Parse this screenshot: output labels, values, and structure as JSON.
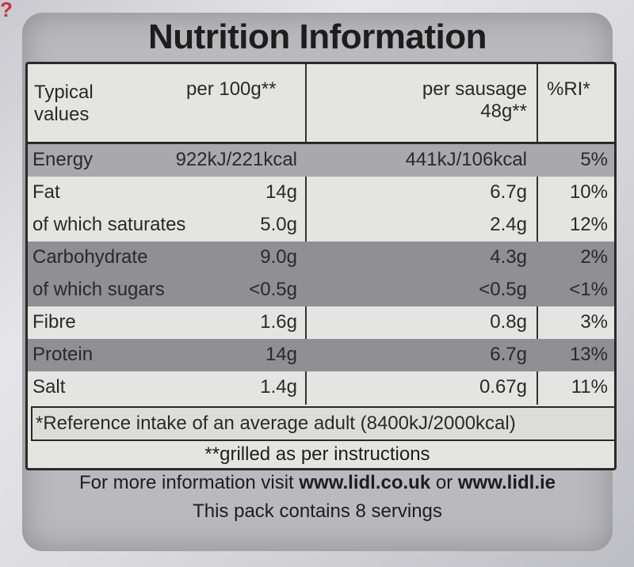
{
  "title": "Nutrition Information",
  "header": {
    "typical": "Typical values",
    "per100": "per 100g**",
    "perSausage": "per sausage 48g**",
    "ri": "%RI*"
  },
  "rows": [
    {
      "name": "Energy",
      "per100": "922kJ/221kcal",
      "perSausage": "441kJ/106kcal",
      "ri": "5%"
    },
    {
      "name": "Fat",
      "per100": "14g",
      "perSausage": "6.7g",
      "ri": "10%"
    },
    {
      "name": "of which saturates",
      "per100": "5.0g",
      "perSausage": "2.4g",
      "ri": "12%"
    },
    {
      "name": "Carbohydrate",
      "per100": "9.0g",
      "perSausage": "4.3g",
      "ri": "2%"
    },
    {
      "name": "of which sugars",
      "per100": "<0.5g",
      "perSausage": "<0.5g",
      "ri": "<1%"
    },
    {
      "name": "Fibre",
      "per100": "1.6g",
      "perSausage": "0.8g",
      "ri": "3%"
    },
    {
      "name": "Protein",
      "per100": "14g",
      "perSausage": "6.7g",
      "ri": "13%"
    },
    {
      "name": "Salt",
      "per100": "1.4g",
      "perSausage": "0.67g",
      "ri": "11%"
    }
  ],
  "footnote": "*Reference intake of an average adult (8400kJ/2000kcal)",
  "info": {
    "grilled": "**grilled as per instructions",
    "moreInfo": "For more information visit",
    "site1": "www.lidl.co.uk",
    "or": "or",
    "site2": "www.lidl.ie",
    "servings": "This pack contains 8 servings"
  }
}
